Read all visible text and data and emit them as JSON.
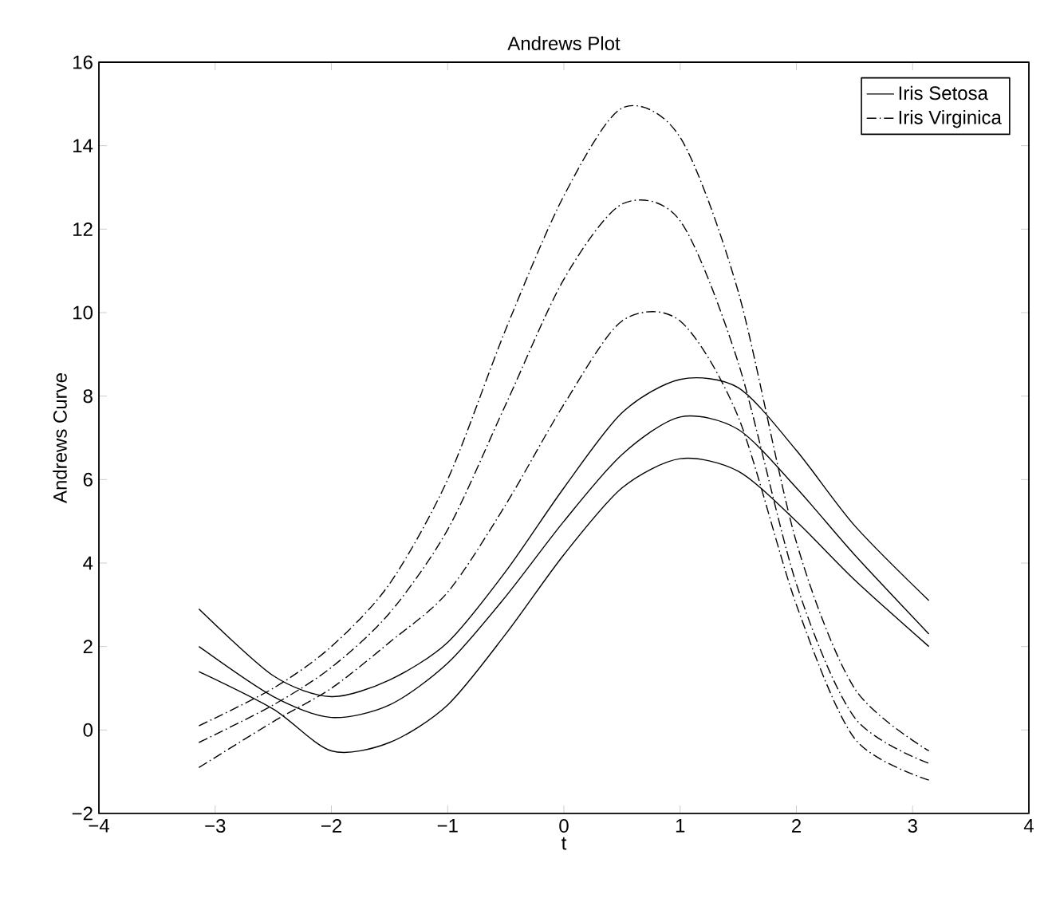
{
  "chart_data": {
    "type": "line",
    "title": "Andrews Plot",
    "xlabel": "t",
    "ylabel": "Andrews Curve",
    "x": [
      -3.14,
      -2.5,
      -2,
      -1.5,
      -1,
      -0.5,
      0,
      0.5,
      1,
      1.5,
      2,
      2.5,
      3.14
    ],
    "series": [
      {
        "name": "Iris Setosa",
        "color": "#000000",
        "line_style": "solid",
        "values": [
          2.0,
          0.8,
          0.3,
          0.6,
          1.6,
          3.2,
          5.0,
          6.6,
          7.5,
          7.2,
          5.8,
          4.2,
          2.3
        ]
      },
      {
        "color": "#000000",
        "line_style": "solid",
        "values": [
          2.9,
          1.3,
          0.8,
          1.2,
          2.1,
          3.8,
          5.8,
          7.6,
          8.4,
          8.2,
          6.7,
          4.9,
          3.1
        ]
      },
      {
        "color": "#000000",
        "line_style": "solid",
        "values": [
          1.4,
          0.5,
          -0.5,
          -0.3,
          0.6,
          2.3,
          4.2,
          5.8,
          6.5,
          6.2,
          5.0,
          3.6,
          2.0
        ]
      },
      {
        "name": "Iris Virginica",
        "color": "#000000",
        "line_style": "dashdot",
        "values": [
          -0.3,
          0.6,
          1.5,
          2.8,
          4.8,
          7.8,
          10.8,
          12.6,
          12.2,
          8.8,
          3.5,
          0.3,
          -0.8
        ]
      },
      {
        "color": "#000000",
        "line_style": "dashdot",
        "values": [
          0.1,
          1.0,
          2.0,
          3.5,
          6.0,
          9.6,
          12.8,
          14.9,
          14.2,
          10.5,
          4.5,
          1.0,
          -0.5
        ]
      },
      {
        "color": "#000000",
        "line_style": "dashdot",
        "values": [
          -0.9,
          0.2,
          1.0,
          2.1,
          3.3,
          5.4,
          7.8,
          9.8,
          9.8,
          7.5,
          3.0,
          -0.2,
          -1.2
        ]
      }
    ],
    "xlim": [
      -4,
      4
    ],
    "ylim": [
      -2,
      16
    ],
    "xticks": [
      {
        "value": -4,
        "label": "−4"
      },
      {
        "value": -3,
        "label": "−3"
      },
      {
        "value": -2,
        "label": "−2"
      },
      {
        "value": -1,
        "label": "−1"
      },
      0,
      1,
      2,
      3,
      4
    ],
    "yticks": [
      {
        "value": -2,
        "label": "−2"
      },
      0,
      2,
      4,
      6,
      8,
      10,
      12,
      14,
      16
    ],
    "grid": false,
    "legend": "top right",
    "marker": "none"
  }
}
